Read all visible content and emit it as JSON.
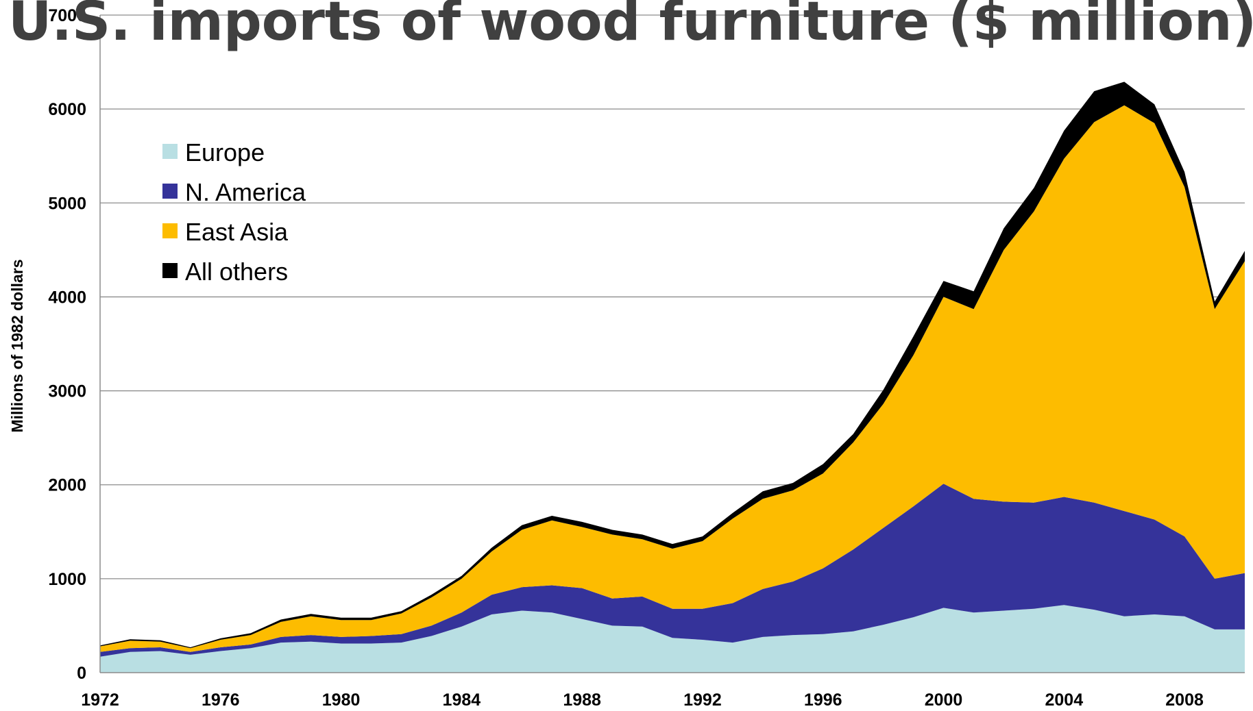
{
  "chart_data": {
    "type": "area",
    "stacked": true,
    "title": "U.S. imports of wood furniture ($ million)",
    "ylabel": "Millions of 1982 dollars",
    "xlabel": "",
    "xlim": [
      1972,
      2010
    ],
    "ylim": [
      0,
      7000
    ],
    "grid": true,
    "legend_position": "top-left",
    "x_ticks": [
      "1972",
      "1976",
      "1980",
      "1984",
      "1988",
      "1992",
      "1996",
      "2000",
      "2004",
      "2008"
    ],
    "y_ticks": [
      "0",
      "1000",
      "2000",
      "3000",
      "4000",
      "5000",
      "6000",
      "7000"
    ],
    "x": [
      1972,
      1973,
      1974,
      1975,
      1976,
      1977,
      1978,
      1979,
      1980,
      1981,
      1982,
      1983,
      1984,
      1985,
      1986,
      1987,
      1988,
      1989,
      1990,
      1991,
      1992,
      1993,
      1994,
      1995,
      1996,
      1997,
      1998,
      1999,
      2000,
      2001,
      2002,
      2003,
      2004,
      2005,
      2006,
      2007,
      2008,
      2009,
      2010
    ],
    "series": [
      {
        "name": "Europe",
        "color": "#b9dfe3",
        "values": [
          170,
          220,
          230,
          190,
          230,
          260,
          320,
          330,
          310,
          310,
          320,
          390,
          490,
          620,
          660,
          640,
          570,
          500,
          490,
          370,
          350,
          320,
          380,
          400,
          410,
          440,
          510,
          590,
          690,
          640,
          660,
          680,
          720,
          670,
          600,
          620,
          600,
          460,
          460
        ]
      },
      {
        "name": "N. America",
        "color": "#35339a",
        "values": [
          50,
          40,
          40,
          30,
          40,
          40,
          60,
          70,
          70,
          80,
          90,
          110,
          150,
          210,
          250,
          290,
          330,
          290,
          320,
          310,
          330,
          420,
          510,
          570,
          700,
          870,
          1030,
          1180,
          1320,
          1210,
          1160,
          1130,
          1150,
          1140,
          1120,
          1010,
          850,
          540,
          600
        ]
      },
      {
        "name": "East Asia",
        "color": "#fdbc00",
        "values": [
          60,
          80,
          60,
          40,
          80,
          100,
          160,
          200,
          180,
          170,
          220,
          300,
          360,
          460,
          610,
          690,
          650,
          680,
          610,
          640,
          720,
          900,
          960,
          970,
          1010,
          1140,
          1320,
          1610,
          1990,
          2020,
          2680,
          3100,
          3600,
          4050,
          4320,
          4220,
          3720,
          2870,
          3320
        ]
      },
      {
        "name": "All others",
        "color": "#000000",
        "values": [
          10,
          15,
          15,
          10,
          15,
          20,
          25,
          25,
          25,
          25,
          25,
          30,
          30,
          40,
          50,
          50,
          55,
          50,
          50,
          50,
          50,
          60,
          80,
          80,
          100,
          90,
          150,
          200,
          170,
          190,
          230,
          250,
          300,
          330,
          250,
          200,
          160,
          80,
          110
        ]
      }
    ]
  }
}
